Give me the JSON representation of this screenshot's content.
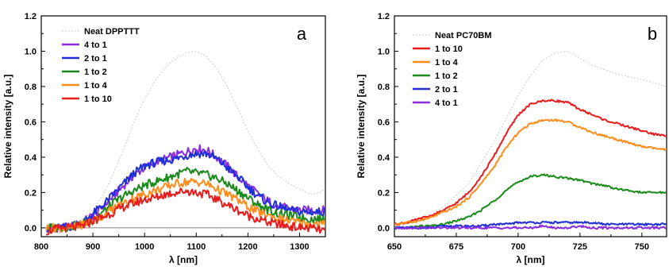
{
  "chart_data": [
    {
      "type": "line",
      "panel": "a",
      "xlabel": "λ [nm]",
      "ylabel": "Relative intensity [a.u.]",
      "xlim": [
        800,
        1350
      ],
      "ylim": [
        -0.05,
        1.2
      ],
      "xticks": [
        800,
        900,
        1000,
        1100,
        1200,
        1300
      ],
      "yticks": [
        0.0,
        0.2,
        0.4,
        0.6,
        0.8,
        1.0,
        1.2
      ],
      "ytick_labels": [
        "0.0",
        "0.2",
        "0.4",
        "0.6",
        "0.8",
        "1.0",
        "1.2"
      ],
      "legend_position": "top-left",
      "grid": false,
      "baseline": 0,
      "series": [
        {
          "name": "Neat DPPTTT",
          "color": "#c8c8c8",
          "style": "dotted",
          "x": [
            820,
            860,
            880,
            900,
            920,
            940,
            960,
            980,
            1000,
            1020,
            1040,
            1060,
            1080,
            1100,
            1120,
            1140,
            1160,
            1180,
            1200,
            1220,
            1240,
            1260,
            1280,
            1300,
            1320,
            1340,
            1350
          ],
          "y": [
            0.0,
            0.02,
            0.05,
            0.1,
            0.19,
            0.31,
            0.45,
            0.6,
            0.73,
            0.83,
            0.91,
            0.96,
            0.99,
            1.0,
            0.97,
            0.9,
            0.8,
            0.68,
            0.55,
            0.44,
            0.35,
            0.29,
            0.25,
            0.22,
            0.19,
            0.2,
            0.22
          ]
        },
        {
          "name": "4 to 1",
          "color": "#8a2be2",
          "style": "solid",
          "x": [
            810,
            840,
            860,
            880,
            900,
            920,
            940,
            960,
            980,
            1000,
            1020,
            1040,
            1060,
            1080,
            1100,
            1120,
            1140,
            1160,
            1180,
            1200,
            1220,
            1240,
            1260,
            1280,
            1300,
            1320,
            1350
          ],
          "y": [
            0.0,
            0.0,
            0.01,
            0.03,
            0.07,
            0.12,
            0.18,
            0.24,
            0.3,
            0.34,
            0.37,
            0.39,
            0.41,
            0.43,
            0.45,
            0.44,
            0.4,
            0.35,
            0.29,
            0.24,
            0.19,
            0.15,
            0.12,
            0.11,
            0.1,
            0.1,
            0.1
          ]
        },
        {
          "name": "2 to 1",
          "color": "#1f2fd6",
          "style": "solid",
          "x": [
            810,
            840,
            860,
            880,
            900,
            920,
            940,
            960,
            980,
            1000,
            1020,
            1040,
            1060,
            1080,
            1100,
            1120,
            1140,
            1160,
            1180,
            1200,
            1220,
            1240,
            1260,
            1280,
            1300,
            1320,
            1350
          ],
          "y": [
            0.0,
            0.0,
            0.01,
            0.03,
            0.08,
            0.13,
            0.19,
            0.25,
            0.31,
            0.35,
            0.37,
            0.38,
            0.39,
            0.41,
            0.42,
            0.42,
            0.39,
            0.34,
            0.29,
            0.23,
            0.18,
            0.14,
            0.12,
            0.1,
            0.09,
            0.09,
            0.09
          ]
        },
        {
          "name": "1 to 2",
          "color": "#1a8a1a",
          "style": "solid",
          "x": [
            810,
            840,
            860,
            880,
            900,
            920,
            940,
            960,
            980,
            1000,
            1020,
            1040,
            1060,
            1080,
            1100,
            1120,
            1140,
            1160,
            1180,
            1200,
            1220,
            1240,
            1260,
            1280,
            1300,
            1320,
            1350
          ],
          "y": [
            0.0,
            0.0,
            0.01,
            0.02,
            0.05,
            0.09,
            0.14,
            0.18,
            0.21,
            0.24,
            0.26,
            0.28,
            0.3,
            0.32,
            0.31,
            0.3,
            0.28,
            0.25,
            0.21,
            0.17,
            0.13,
            0.1,
            0.08,
            0.07,
            0.06,
            0.05,
            0.05
          ]
        },
        {
          "name": "1 to 4",
          "color": "#ff8c1a",
          "style": "solid",
          "x": [
            810,
            840,
            860,
            880,
            900,
            920,
            940,
            960,
            980,
            1000,
            1020,
            1040,
            1060,
            1080,
            1100,
            1120,
            1140,
            1160,
            1180,
            1200,
            1220,
            1240,
            1260,
            1280,
            1300,
            1320,
            1350
          ],
          "y": [
            0.0,
            0.0,
            0.0,
            0.02,
            0.04,
            0.07,
            0.11,
            0.14,
            0.17,
            0.19,
            0.21,
            0.23,
            0.25,
            0.26,
            0.26,
            0.25,
            0.22,
            0.19,
            0.16,
            0.12,
            0.09,
            0.07,
            0.05,
            0.04,
            0.03,
            0.02,
            0.02
          ]
        },
        {
          "name": "1 to 10",
          "color": "#e81c1c",
          "style": "solid",
          "x": [
            810,
            840,
            860,
            880,
            900,
            920,
            940,
            960,
            980,
            1000,
            1020,
            1040,
            1060,
            1080,
            1100,
            1120,
            1140,
            1160,
            1180,
            1200,
            1220,
            1240,
            1260,
            1280,
            1300,
            1320,
            1350
          ],
          "y": [
            -0.02,
            0.0,
            0.0,
            0.01,
            0.04,
            0.06,
            0.09,
            0.12,
            0.14,
            0.16,
            0.17,
            0.19,
            0.2,
            0.21,
            0.2,
            0.19,
            0.16,
            0.13,
            0.1,
            0.07,
            0.05,
            0.03,
            0.02,
            0.01,
            0.0,
            0.0,
            -0.02
          ]
        }
      ]
    },
    {
      "type": "line",
      "panel": "b",
      "xlabel": "λ [nm]",
      "ylabel": "Relative intensity [a.u.]",
      "xlim": [
        650,
        760
      ],
      "ylim": [
        -0.05,
        1.2
      ],
      "xticks": [
        650,
        675,
        700,
        725,
        750
      ],
      "yticks": [
        0.0,
        0.2,
        0.4,
        0.6,
        0.8,
        1.0,
        1.2
      ],
      "ytick_labels": [
        "0.0",
        "0.2",
        "0.4",
        "0.6",
        "0.8",
        "1.0",
        "1.2"
      ],
      "legend_position": "top-left",
      "grid": false,
      "series": [
        {
          "name": "Neat PC70BM",
          "color": "#c8c8c8",
          "style": "dotted",
          "x": [
            650,
            660,
            670,
            680,
            690,
            700,
            705,
            710,
            715,
            720,
            725,
            730,
            740,
            750,
            760
          ],
          "y": [
            0.01,
            0.05,
            0.12,
            0.25,
            0.48,
            0.75,
            0.86,
            0.95,
            0.99,
            1.0,
            0.96,
            0.92,
            0.87,
            0.84,
            0.8
          ]
        },
        {
          "name": "1 to 10",
          "color": "#e81c1c",
          "style": "solid",
          "x": [
            650,
            655,
            660,
            665,
            670,
            675,
            680,
            685,
            690,
            695,
            700,
            705,
            710,
            715,
            720,
            725,
            730,
            735,
            740,
            745,
            750,
            755,
            760
          ],
          "y": [
            0.02,
            0.03,
            0.05,
            0.07,
            0.1,
            0.14,
            0.2,
            0.29,
            0.4,
            0.53,
            0.64,
            0.7,
            0.72,
            0.72,
            0.71,
            0.67,
            0.64,
            0.61,
            0.59,
            0.57,
            0.55,
            0.53,
            0.52
          ]
        },
        {
          "name": "1 to 4",
          "color": "#ff8c1a",
          "style": "solid",
          "x": [
            650,
            655,
            660,
            665,
            670,
            675,
            680,
            685,
            690,
            695,
            700,
            705,
            710,
            715,
            720,
            725,
            730,
            735,
            740,
            745,
            750,
            755,
            760
          ],
          "y": [
            0.02,
            0.03,
            0.04,
            0.06,
            0.09,
            0.12,
            0.17,
            0.25,
            0.34,
            0.45,
            0.54,
            0.59,
            0.61,
            0.61,
            0.6,
            0.57,
            0.54,
            0.52,
            0.5,
            0.48,
            0.46,
            0.45,
            0.44
          ]
        },
        {
          "name": "1 to 2",
          "color": "#1a8a1a",
          "style": "solid",
          "x": [
            650,
            655,
            660,
            665,
            670,
            675,
            680,
            685,
            690,
            695,
            700,
            705,
            710,
            715,
            720,
            725,
            730,
            735,
            740,
            745,
            750,
            755,
            760
          ],
          "y": [
            0.0,
            0.0,
            0.01,
            0.01,
            0.02,
            0.04,
            0.06,
            0.1,
            0.15,
            0.21,
            0.26,
            0.29,
            0.3,
            0.29,
            0.28,
            0.27,
            0.25,
            0.24,
            0.22,
            0.21,
            0.2,
            0.2,
            0.2
          ]
        },
        {
          "name": "2 to 1",
          "color": "#1f2fd6",
          "style": "solid",
          "x": [
            650,
            655,
            660,
            665,
            670,
            675,
            680,
            685,
            690,
            695,
            700,
            705,
            710,
            715,
            720,
            725,
            730,
            735,
            740,
            745,
            750,
            755,
            760
          ],
          "y": [
            0.0,
            0.0,
            0.0,
            0.0,
            0.01,
            0.01,
            0.01,
            0.01,
            0.02,
            0.02,
            0.03,
            0.03,
            0.03,
            0.03,
            0.03,
            0.03,
            0.03,
            0.02,
            0.02,
            0.02,
            0.02,
            0.02,
            0.02
          ]
        },
        {
          "name": "4 to 1",
          "color": "#8a2be2",
          "style": "solid",
          "x": [
            650,
            655,
            660,
            665,
            670,
            675,
            680,
            685,
            690,
            695,
            700,
            705,
            710,
            715,
            720,
            725,
            730,
            735,
            740,
            745,
            750,
            755,
            760
          ],
          "y": [
            0.0,
            0.0,
            0.0,
            0.0,
            0.0,
            0.0,
            0.0,
            0.0,
            0.0,
            0.0,
            0.0,
            0.0,
            0.01,
            0.0,
            0.0,
            0.01,
            0.0,
            0.0,
            0.0,
            0.0,
            0.0,
            0.0,
            0.0
          ]
        }
      ]
    }
  ]
}
